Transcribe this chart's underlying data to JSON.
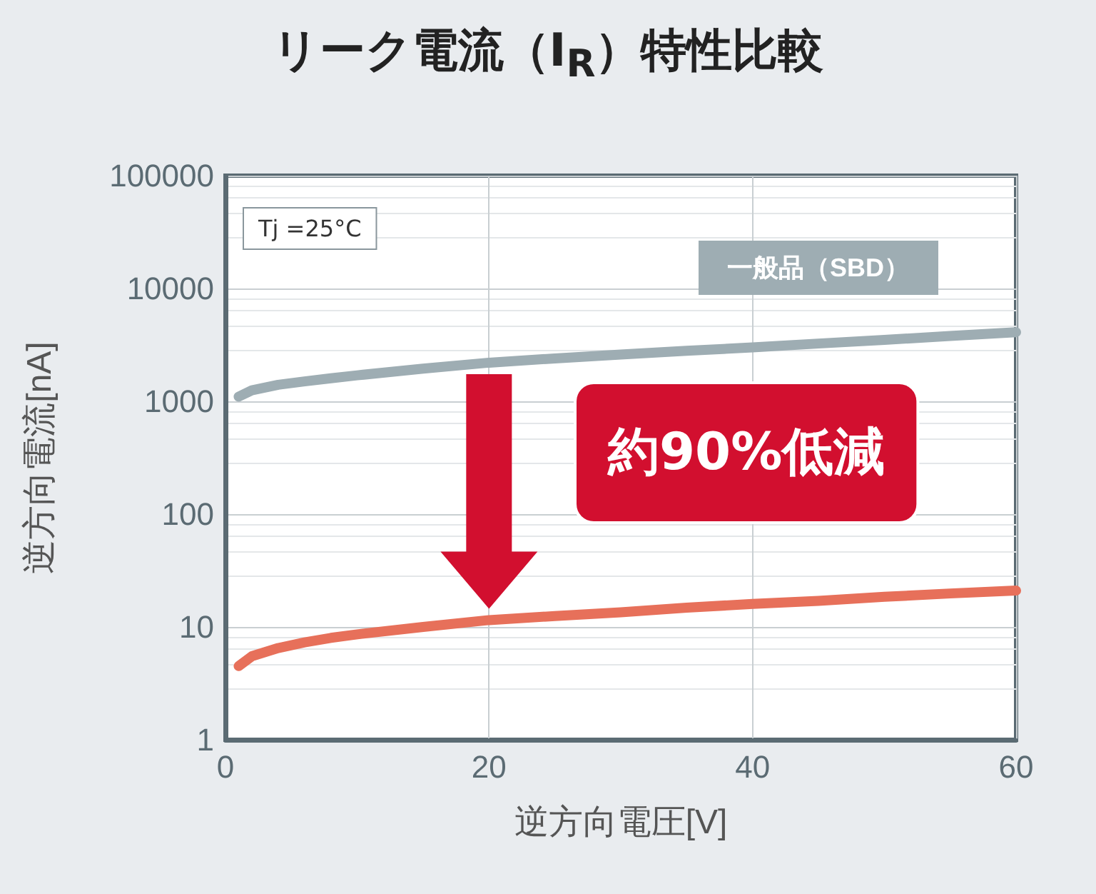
{
  "chart_data": {
    "type": "line",
    "title": "リーク電流（I$_{R}$）特性比較",
    "xlabel": "逆方向電圧[V]",
    "ylabel": "逆方向電流[nA]",
    "x": [
      1,
      2,
      4,
      6,
      8,
      10,
      15,
      20,
      25,
      30,
      35,
      40,
      45,
      50,
      55,
      60
    ],
    "series": [
      {
        "name": "一般品（SBD）",
        "color": "#9eadb3",
        "values": [
          1100,
          1250,
          1400,
          1500,
          1600,
          1700,
          1950,
          2200,
          2400,
          2600,
          2800,
          3000,
          3250,
          3500,
          3800,
          4100
        ]
      },
      {
        "color": "#e7705a",
        "values": [
          4.5,
          5.5,
          6.5,
          7.3,
          8,
          8.6,
          10,
          11.5,
          12.5,
          13.5,
          14.8,
          16,
          17,
          18.5,
          19.8,
          21
        ]
      }
    ],
    "log": true,
    "xlim": [
      0,
      60
    ],
    "xticks": [
      0,
      20,
      40,
      60
    ],
    "ylim": [
      1,
      100000
    ],
    "yticks": [
      1,
      10,
      100,
      1000,
      10000,
      100000
    ],
    "grid": true,
    "legend": false,
    "line_style": "solid",
    "annotations": [
      "Tj =25°C",
      "約90%低減"
    ]
  }
}
